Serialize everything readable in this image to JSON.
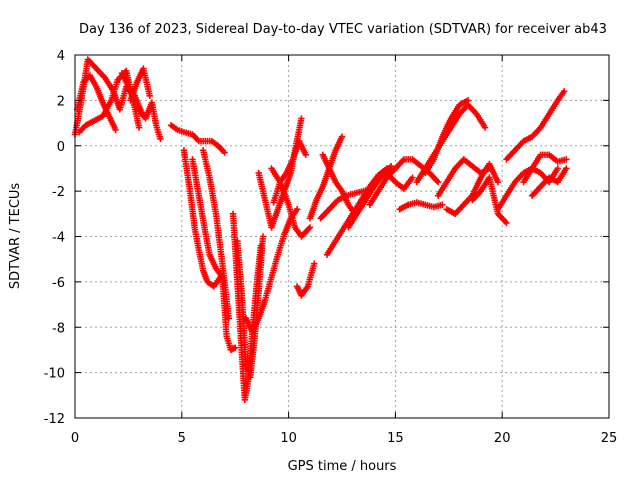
{
  "chart_data": {
    "type": "scatter",
    "title": "Day 136 of 2023, Sidereal Day-to-day VTEC variation (SDTVAR) for receiver ab43",
    "xlabel": "GPS time / hours",
    "ylabel": "SDTVAR / TECUs",
    "xlim": [
      0,
      25
    ],
    "ylim": [
      -12,
      4
    ],
    "xticks": [
      0,
      5,
      10,
      15,
      20,
      25
    ],
    "xtick_labels": [
      "0",
      "5",
      "10",
      "15",
      "20",
      "25"
    ],
    "yticks": [
      -12,
      -10,
      -8,
      -6,
      -4,
      -2,
      0,
      2,
      4
    ],
    "ytick_labels": [
      "-12",
      "-10",
      "-8",
      "-6",
      "-4",
      "-2",
      "0",
      "2",
      "4"
    ],
    "grid": true,
    "marker": "plus",
    "color": "#ff0000",
    "series": [
      {
        "x": [
          0.0,
          0.3,
          0.6,
          1.0,
          1.4,
          1.8,
          2.1,
          2.4,
          2.8,
          3.2
        ],
        "y": [
          0.5,
          2.0,
          3.8,
          3.4,
          3.0,
          2.4,
          1.6,
          2.6,
          2.2,
          1.3
        ]
      },
      {
        "x": [
          0.1,
          0.4,
          0.7,
          1.0,
          1.3,
          1.6,
          1.9
        ],
        "y": [
          1.6,
          2.8,
          3.1,
          2.6,
          1.9,
          1.3,
          0.7
        ]
      },
      {
        "x": [
          0.2,
          0.5,
          0.9,
          1.3,
          1.7,
          2.0,
          2.4,
          2.7,
          3.0
        ],
        "y": [
          0.6,
          0.9,
          1.1,
          1.3,
          2.0,
          2.9,
          3.3,
          2.1,
          0.8
        ]
      },
      {
        "x": [
          2.2,
          2.5,
          2.9,
          3.3,
          3.6,
          3.8,
          4.0
        ],
        "y": [
          3.2,
          2.6,
          1.7,
          1.2,
          1.9,
          0.9,
          0.3
        ]
      },
      {
        "x": [
          2.6,
          2.9,
          3.2,
          3.5
        ],
        "y": [
          2.0,
          2.8,
          3.4,
          2.2
        ]
      },
      {
        "x": [
          4.5,
          4.8,
          5.1,
          5.5,
          5.8,
          6.1,
          6.4,
          6.7,
          7.0
        ],
        "y": [
          0.9,
          0.7,
          0.6,
          0.5,
          0.2,
          0.2,
          0.2,
          0.0,
          -0.3
        ]
      },
      {
        "x": [
          5.1,
          5.4,
          5.6,
          5.8,
          6.0,
          6.2,
          6.5,
          6.8
        ],
        "y": [
          -0.2,
          -2.1,
          -3.6,
          -4.6,
          -5.5,
          -6.0,
          -6.2,
          -5.8
        ]
      },
      {
        "x": [
          5.5,
          5.8,
          6.1,
          6.3,
          6.6,
          6.9,
          7.1,
          7.3,
          7.5
        ],
        "y": [
          -0.6,
          -2.2,
          -3.8,
          -4.8,
          -5.4,
          -5.8,
          -8.4,
          -9.0,
          -8.9
        ]
      },
      {
        "x": [
          6.0,
          6.3,
          6.6,
          6.9,
          7.2
        ],
        "y": [
          -0.2,
          -1.4,
          -3.0,
          -5.2,
          -7.6
        ]
      },
      {
        "x": [
          7.4,
          7.6,
          7.8,
          7.95,
          8.1,
          8.3,
          8.5,
          8.7
        ],
        "y": [
          -3.0,
          -6.0,
          -9.0,
          -11.2,
          -10.4,
          -8.2,
          -6.2,
          -4.4
        ]
      },
      {
        "x": [
          7.6,
          7.8,
          8.0,
          8.2,
          8.4,
          8.6,
          8.8
        ],
        "y": [
          -4.2,
          -6.4,
          -9.6,
          -10.2,
          -8.6,
          -6.4,
          -4.0
        ]
      },
      {
        "x": [
          8.0,
          8.3,
          8.6,
          8.9,
          9.2,
          9.5,
          9.8,
          10.1,
          10.4
        ],
        "y": [
          -7.6,
          -8.2,
          -7.6,
          -6.8,
          -5.8,
          -4.8,
          -3.9,
          -3.2,
          -2.8
        ]
      },
      {
        "x": [
          8.6,
          8.9,
          9.2,
          9.5,
          9.8,
          10.1,
          10.3,
          10.6
        ],
        "y": [
          -1.2,
          -2.4,
          -3.6,
          -2.8,
          -2.0,
          -1.2,
          -0.2,
          1.2
        ]
      },
      {
        "x": [
          9.3,
          9.6,
          9.9,
          10.2,
          10.5,
          10.8
        ],
        "y": [
          -2.5,
          -1.6,
          -1.2,
          -0.6,
          0.2,
          -0.4
        ]
      },
      {
        "x": [
          9.2,
          9.6,
          10.0,
          10.3,
          10.6,
          11.0
        ],
        "y": [
          -1.0,
          -1.6,
          -2.6,
          -3.6,
          -4.0,
          -3.6
        ]
      },
      {
        "x": [
          10.4,
          10.6,
          10.9,
          11.2
        ],
        "y": [
          -6.2,
          -6.6,
          -6.2,
          -5.2
        ]
      },
      {
        "x": [
          11.0,
          11.3,
          11.6,
          11.9,
          12.2,
          12.5
        ],
        "y": [
          -3.2,
          -2.4,
          -1.8,
          -1.0,
          -0.2,
          0.4
        ]
      },
      {
        "x": [
          11.6,
          11.9,
          12.2,
          12.5,
          12.8,
          13.1
        ],
        "y": [
          -0.4,
          -1.0,
          -1.6,
          -2.0,
          -2.6,
          -3.0
        ]
      },
      {
        "x": [
          11.5,
          11.9,
          12.3,
          12.7,
          13.1,
          13.5,
          13.9
        ],
        "y": [
          -3.2,
          -2.8,
          -2.4,
          -2.2,
          -2.1,
          -2.0,
          -1.9
        ]
      },
      {
        "x": [
          11.8,
          12.2,
          12.6,
          13.0,
          13.4,
          13.8,
          14.2,
          14.6
        ],
        "y": [
          -4.8,
          -4.2,
          -3.6,
          -3.0,
          -2.4,
          -1.8,
          -1.3,
          -1.0
        ]
      },
      {
        "x": [
          12.8,
          13.2,
          13.6,
          14.0,
          14.4,
          14.8
        ],
        "y": [
          -3.6,
          -3.0,
          -2.4,
          -1.8,
          -1.3,
          -0.9
        ]
      },
      {
        "x": [
          13.8,
          14.2,
          14.6,
          15.0,
          15.4,
          15.8,
          16.2,
          16.6,
          17.0
        ],
        "y": [
          -2.6,
          -2.0,
          -1.4,
          -1.0,
          -0.6,
          -0.6,
          -0.9,
          -1.2,
          -1.6
        ]
      },
      {
        "x": [
          14.2,
          14.6,
          15.0,
          15.4,
          15.8
        ],
        "y": [
          -1.4,
          -1.2,
          -1.6,
          -1.9,
          -1.4
        ]
      },
      {
        "x": [
          15.2,
          15.6,
          16.0,
          16.4,
          16.8,
          17.2
        ],
        "y": [
          -2.8,
          -2.6,
          -2.5,
          -2.6,
          -2.7,
          -2.6
        ]
      },
      {
        "x": [
          16.0,
          16.4,
          16.8,
          17.2,
          17.6,
          18.0,
          18.4,
          18.8,
          19.2
        ],
        "y": [
          -1.6,
          -1.0,
          -0.4,
          0.2,
          0.8,
          1.4,
          1.8,
          1.4,
          0.8
        ]
      },
      {
        "x": [
          16.4,
          16.8,
          17.2,
          17.6,
          18.0,
          18.4
        ],
        "y": [
          -1.2,
          -0.6,
          0.4,
          1.2,
          1.8,
          2.0
        ]
      },
      {
        "x": [
          17.0,
          17.4,
          17.8,
          18.2,
          18.6,
          19.0,
          19.4
        ],
        "y": [
          -2.2,
          -1.6,
          -1.0,
          -0.6,
          -0.9,
          -1.2,
          -1.0
        ]
      },
      {
        "x": [
          17.4,
          17.8,
          18.2,
          18.6,
          19.0,
          19.4,
          19.8
        ],
        "y": [
          -2.8,
          -3.0,
          -2.6,
          -2.2,
          -1.4,
          -0.8,
          -1.6
        ]
      },
      {
        "x": [
          18.6,
          19.0,
          19.4,
          19.8,
          20.2
        ],
        "y": [
          -2.4,
          -2.0,
          -1.4,
          -3.0,
          -3.4
        ]
      },
      {
        "x": [
          19.8,
          20.2,
          20.6,
          21.0,
          21.4,
          21.8,
          22.2,
          22.6
        ],
        "y": [
          -2.8,
          -2.2,
          -1.6,
          -1.2,
          -1.0,
          -1.2,
          -1.6,
          -1.0
        ]
      },
      {
        "x": [
          20.2,
          20.6,
          21.0,
          21.4,
          21.8,
          22.2,
          22.6,
          22.9
        ],
        "y": [
          -0.6,
          -0.2,
          0.2,
          0.4,
          0.8,
          1.4,
          2.0,
          2.4
        ]
      },
      {
        "x": [
          21.0,
          21.4,
          21.8,
          22.2,
          22.6,
          23.0
        ],
        "y": [
          -1.6,
          -1.0,
          -0.4,
          -0.4,
          -0.7,
          -0.6
        ]
      },
      {
        "x": [
          21.4,
          21.8,
          22.2,
          22.6,
          23.0
        ],
        "y": [
          -2.2,
          -1.8,
          -1.4,
          -1.6,
          -1.0
        ]
      }
    ]
  }
}
